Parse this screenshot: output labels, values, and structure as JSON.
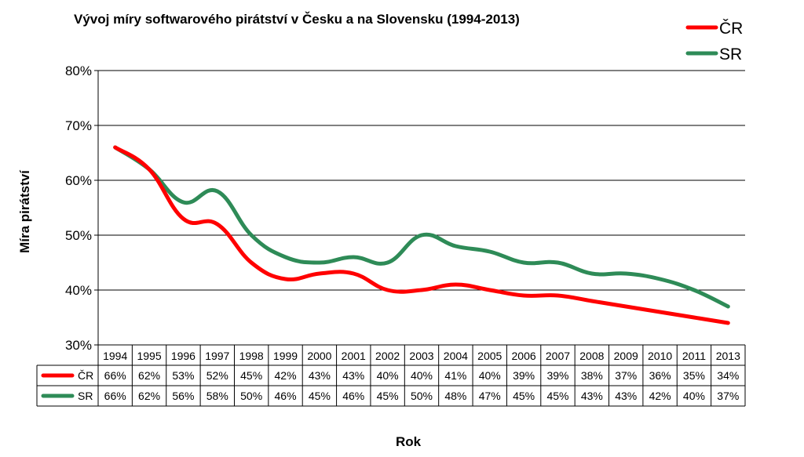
{
  "chart_data": {
    "type": "line",
    "title": "Vývoj míry softwarového pirátství v Česku a na Slovensku (1994-2013)",
    "xlabel": "Rok",
    "ylabel": "Míra pirátství",
    "ylim": [
      30,
      80
    ],
    "yticks": [
      "30%",
      "40%",
      "50%",
      "60%",
      "70%",
      "80%"
    ],
    "grid": true,
    "legend_position": "top-right",
    "categories": [
      "1994",
      "1995",
      "1996",
      "1997",
      "1998",
      "1999",
      "2000",
      "2001",
      "2002",
      "2003",
      "2004",
      "2005",
      "2006",
      "2007",
      "2008",
      "2009",
      "2010",
      "2011",
      "2013"
    ],
    "series": [
      {
        "name": "ČR",
        "color": "#ff0000",
        "values": [
          66,
          62,
          53,
          52,
          45,
          42,
          43,
          43,
          40,
          40,
          41,
          40,
          39,
          39,
          38,
          37,
          36,
          35,
          34
        ],
        "labels": [
          "66%",
          "62%",
          "53%",
          "52%",
          "45%",
          "42%",
          "43%",
          "43%",
          "40%",
          "40%",
          "41%",
          "40%",
          "39%",
          "39%",
          "38%",
          "37%",
          "36%",
          "35%",
          "34%"
        ]
      },
      {
        "name": "SR",
        "color": "#2e8b57",
        "values": [
          66,
          62,
          56,
          58,
          50,
          46,
          45,
          46,
          45,
          50,
          48,
          47,
          45,
          45,
          43,
          43,
          42,
          40,
          37
        ],
        "labels": [
          "66%",
          "62%",
          "56%",
          "58%",
          "50%",
          "46%",
          "45%",
          "46%",
          "45%",
          "50%",
          "48%",
          "47%",
          "45%",
          "45%",
          "43%",
          "43%",
          "42%",
          "40%",
          "37%"
        ]
      }
    ]
  }
}
